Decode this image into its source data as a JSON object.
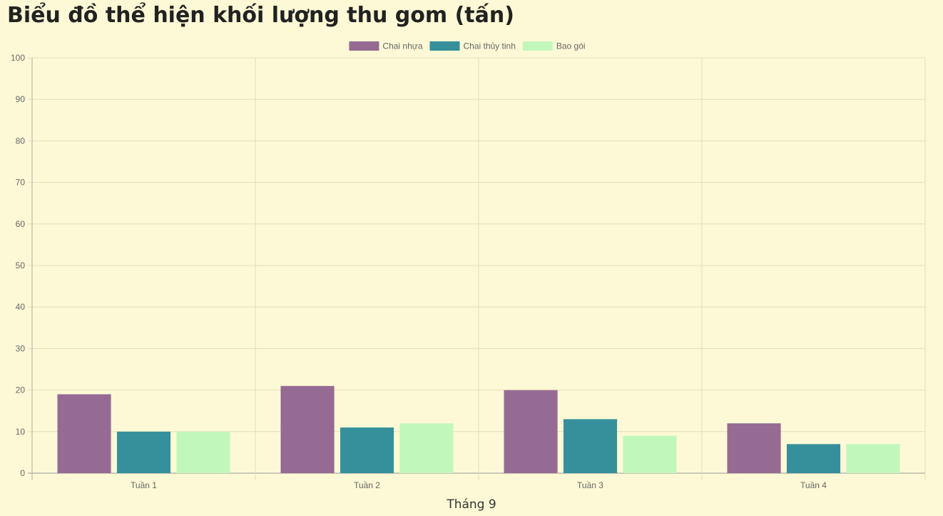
{
  "title": "Biểu đồ thể hiện khối lượng thu gom (tấn)",
  "chart_data": {
    "type": "bar",
    "categories": [
      "Tuần 1",
      "Tuần 2",
      "Tuần 3",
      "Tuần 4"
    ],
    "series": [
      {
        "name": "Chai nhựa",
        "color": "#956b94",
        "values": [
          19,
          21,
          20,
          12
        ]
      },
      {
        "name": "Chai thủy tinh",
        "color": "#36909b",
        "values": [
          10,
          11,
          13,
          7
        ]
      },
      {
        "name": "Bao gói",
        "color": "#c2f7bb",
        "values": [
          10,
          12,
          9,
          7
        ]
      }
    ],
    "xlabel": "Tháng 9",
    "ylabel": "",
    "ylim": [
      0,
      100
    ],
    "yticks": [
      0,
      10,
      20,
      30,
      40,
      50,
      60,
      70,
      80,
      90,
      100
    ],
    "grid": true,
    "legend": "top-center"
  }
}
